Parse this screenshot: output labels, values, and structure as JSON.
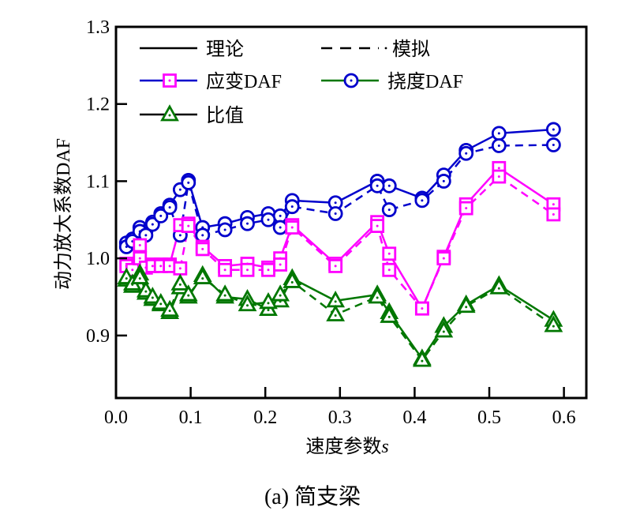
{
  "chart_data": {
    "type": "line",
    "caption": "(a)  简支梁",
    "xlabel": "速度参数",
    "xlabel_var": "s",
    "ylabel": "动力放大系数DAF",
    "xlim": [
      0.0,
      0.63
    ],
    "ylim": [
      0.819,
      1.3
    ],
    "xticks": [
      0.0,
      0.1,
      0.2,
      0.3,
      0.4,
      0.5,
      0.6
    ],
    "xtick_labels": [
      "0.0",
      "0.1",
      "0.2",
      "0.3",
      "0.4",
      "0.5",
      "0.6"
    ],
    "yticks": [
      0.9,
      1.0,
      1.1,
      1.2,
      1.3
    ],
    "ytick_labels": [
      "0.9",
      "1.0",
      "1.1",
      "1.2",
      "1.3"
    ],
    "grid": false,
    "legend_placement": "top-left",
    "legend": [
      {
        "label": "理论",
        "line": "#000000",
        "dash": false,
        "marker": "none",
        "marker_color": ""
      },
      {
        "label": "模拟",
        "line": "#000000",
        "dash": true,
        "marker": "none",
        "marker_color": ""
      },
      {
        "label": "应变DAF",
        "line": "#0000cc",
        "dash": false,
        "marker": "square",
        "marker_color": "#ff00ff"
      },
      {
        "label": "挠度DAF",
        "line": "#007700",
        "dash": false,
        "marker": "circle",
        "marker_color": "#0000cc"
      },
      {
        "label": "比值",
        "line": "#000000",
        "dash": false,
        "marker": "triangle",
        "marker_color": "#007700"
      }
    ],
    "x": [
      0.014,
      0.022,
      0.032,
      0.04,
      0.049,
      0.06,
      0.072,
      0.086,
      0.097,
      0.116,
      0.146,
      0.176,
      0.204,
      0.22,
      0.236,
      0.294,
      0.35,
      0.366,
      0.41,
      0.439,
      0.469,
      0.513,
      0.586
    ],
    "series": [
      {
        "name": "挠度DAF 理论",
        "quantity": "deflection",
        "kind": "theory",
        "color": "#0000cc",
        "marker": "circle",
        "values": [
          1.02,
          1.025,
          1.04,
          1.035,
          1.047,
          1.058,
          1.069,
          1.089,
          1.101,
          1.04,
          1.045,
          1.053,
          1.058,
          1.055,
          1.075,
          1.072,
          1.1,
          1.094,
          1.078,
          1.108,
          1.14,
          1.162,
          1.167
        ]
      },
      {
        "name": "挠度DAF 模拟",
        "quantity": "deflection",
        "kind": "simulation",
        "color": "#0000cc",
        "marker": "circle",
        "values": [
          1.015,
          1.022,
          1.035,
          1.03,
          1.044,
          1.055,
          1.066,
          1.03,
          1.098,
          1.03,
          1.037,
          1.045,
          1.05,
          1.04,
          1.067,
          1.058,
          1.094,
          1.063,
          1.075,
          1.1,
          1.136,
          1.146,
          1.147
        ]
      },
      {
        "name": "应变DAF 理论",
        "quantity": "strain",
        "kind": "theory",
        "color": "#ff00ff",
        "marker": "square",
        "values": [
          0.993,
          0.987,
          1.017,
          0.99,
          0.992,
          0.992,
          0.992,
          1.043,
          1.045,
          1.015,
          0.99,
          0.993,
          0.988,
          1.0,
          1.043,
          0.993,
          1.047,
          1.006,
          0.935,
          1.002,
          1.07,
          1.117,
          1.07
        ]
      },
      {
        "name": "应变DAF 模拟",
        "quantity": "strain",
        "kind": "simulation",
        "color": "#ff00ff",
        "marker": "square",
        "values": [
          0.99,
          0.985,
          1.0,
          0.988,
          0.99,
          0.99,
          0.99,
          0.987,
          1.042,
          1.012,
          0.985,
          0.985,
          0.985,
          0.992,
          1.04,
          0.99,
          1.042,
          0.985,
          0.935,
          1.0,
          1.065,
          1.106,
          1.057
        ]
      },
      {
        "name": "比值 理论",
        "quantity": "ratio",
        "kind": "theory",
        "color": "#007700",
        "marker": "triangle",
        "values": [
          0.972,
          0.964,
          0.98,
          0.955,
          0.947,
          0.94,
          0.93,
          0.962,
          0.95,
          0.978,
          0.95,
          0.947,
          0.934,
          0.945,
          0.974,
          0.945,
          0.953,
          0.93,
          0.87,
          0.912,
          0.94,
          0.965,
          0.92
        ]
      },
      {
        "name": "比值 模拟",
        "quantity": "ratio",
        "kind": "simulation",
        "color": "#007700",
        "marker": "triangle",
        "values": [
          0.975,
          0.967,
          0.975,
          0.958,
          0.95,
          0.942,
          0.933,
          0.967,
          0.953,
          0.975,
          0.953,
          0.94,
          0.943,
          0.953,
          0.97,
          0.927,
          0.95,
          0.925,
          0.868,
          0.906,
          0.938,
          0.962,
          0.913
        ]
      }
    ]
  }
}
